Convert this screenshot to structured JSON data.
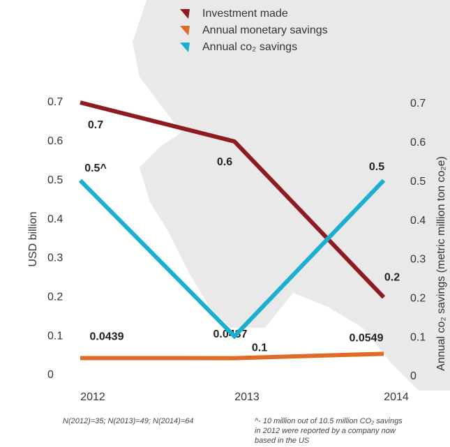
{
  "chart_data": {
    "type": "line",
    "categories": [
      "2012",
      "2013",
      "2014"
    ],
    "ylabel": "USD billion",
    "y2label": "Annual co₂ savings (metric million ton co₂e)",
    "ylim": [
      0,
      0.7
    ],
    "yticks": [
      0,
      0.1,
      0.2,
      0.3,
      0.4,
      0.5,
      0.6,
      0.7
    ],
    "y2lim": [
      0,
      0.7
    ],
    "y2ticks": [
      0,
      0.1,
      0.2,
      0.3,
      0.4,
      0.5,
      0.6,
      0.7
    ],
    "legend": "top",
    "series": [
      {
        "name": "Investment made",
        "color": "#8e1b1f",
        "values": [
          0.7,
          0.6,
          0.2
        ]
      },
      {
        "name": "Annual monetary savings",
        "color": "#e06a26",
        "values": [
          0.0439,
          0.0437,
          0.0549
        ]
      },
      {
        "name": "Annual co₂ savings",
        "color": "#1aaed0",
        "values": [
          0.5,
          0.1,
          0.5
        ],
        "value_labels": [
          "0.5^",
          "0.1",
          "0.5"
        ],
        "axis": "y2"
      }
    ],
    "notes": [
      "N(2012)=35; N(2013)=49; N(2014)=64",
      "^- 10 million out of 10.5 million CO₂ savings",
      "in 2012 were reported by a company now",
      "based in the US"
    ]
  }
}
